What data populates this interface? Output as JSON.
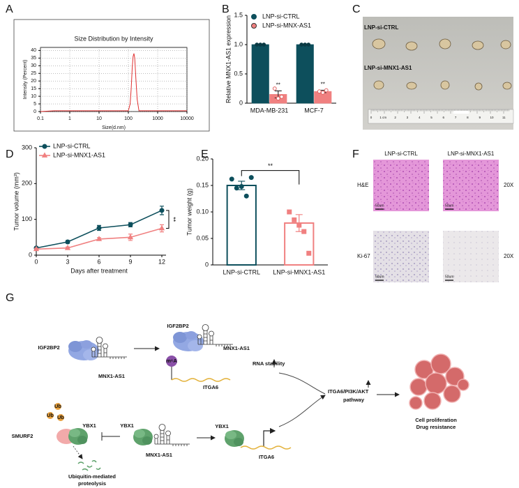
{
  "panel_labels": [
    "A",
    "B",
    "C",
    "D",
    "E",
    "F",
    "G"
  ],
  "chart_data": [
    {
      "type": "line",
      "title": "Size Distribution by Intensity",
      "x_label": "Size(d.nm)",
      "y_label": "Intensity (Percent)",
      "x": [
        0.1,
        0.3,
        1,
        10,
        100,
        115,
        125,
        135,
        145,
        155,
        165,
        180,
        200,
        230,
        1000,
        10000
      ],
      "values": [
        0,
        0.5,
        0.5,
        0.5,
        0.5,
        5,
        15,
        28,
        36,
        38,
        35,
        22,
        8,
        0.5,
        0.5,
        0.5
      ],
      "color": "#e03030",
      "log_x": true,
      "xlim": [
        0.1,
        10000
      ],
      "xticks": [
        0.1,
        1,
        10,
        100,
        1000,
        10000
      ],
      "ylim": [
        0,
        42
      ],
      "yticks": [
        0,
        5,
        10,
        15,
        20,
        25,
        30,
        35,
        40
      ],
      "grid": true,
      "frame": true
    },
    {
      "type": "bar",
      "y_label": "Relative MNX1-AS1 expression",
      "categories": [
        "MDA-MB-231",
        "MCF-7"
      ],
      "series": [
        {
          "name": "LNP-si-CTRL",
          "color": "#0d4f5c",
          "values": [
            1,
            1
          ],
          "errors": [
            0.005,
            0.005
          ],
          "points": [
            [
              1,
              1,
              1
            ],
            [
              1,
              1,
              1
            ]
          ]
        },
        {
          "name": "LNP-si-MNX-AS1",
          "color": "#f08080",
          "values": [
            0.15,
            0.2
          ],
          "errors": [
            0.06,
            0.02
          ],
          "points": [
            [
              0.25,
              0.08,
              0.11
            ],
            [
              0.2,
              0.18,
              0.22
            ]
          ],
          "annotations": [
            "**",
            "**"
          ]
        }
      ],
      "ylim": [
        0,
        1.5
      ],
      "yticks": [
        0,
        0.5,
        {
          "value": 1,
          "label": "1.0"
        },
        1.5
      ],
      "legend": "upper left"
    },
    {
      "type": "line",
      "x_label": "Days after treatment",
      "y_label": "Tumor volume (mm³)",
      "x": [
        0,
        3,
        6,
        9,
        12
      ],
      "series": [
        {
          "name": "LNP-si-CTRL",
          "color": "#0d4f5c",
          "marker": "circle",
          "values": [
            20,
            37,
            76,
            85,
            125
          ],
          "errors": [
            3,
            4,
            7,
            6,
            12
          ]
        },
        {
          "name": "LNP-si-MNX1-AS1",
          "color": "#f08080",
          "marker": "triangle",
          "values": [
            17,
            20,
            45,
            50,
            75
          ],
          "errors": [
            2,
            3,
            4,
            9,
            10
          ]
        }
      ],
      "xlim": [
        0,
        12
      ],
      "xticks": [
        0,
        3,
        6,
        9,
        12
      ],
      "ylim": [
        0,
        300
      ],
      "yticks": [
        0,
        100,
        200,
        300
      ],
      "annotation": "**",
      "legend": "upper left"
    },
    {
      "type": "bar",
      "y_label": "Tumor weight (g)",
      "categories": [
        "LNP-si-CTRL",
        "LNP-si-MNX1-AS1"
      ],
      "values": [
        0.15,
        0.079
      ],
      "errors": [
        0.008,
        0.016
      ],
      "colors": [
        "#0d4f5c",
        "#f08080"
      ],
      "markers": [
        "circle",
        "square"
      ],
      "points": [
        [
          0.162,
          0.145,
          0.148,
          0.13,
          0.165
        ],
        [
          0.1,
          0.085,
          0.075,
          0.063,
          0.022
        ]
      ],
      "ylim": [
        0,
        0.2
      ],
      "yticks": [
        0,
        0.05,
        {
          "value": 0.1,
          "label": "0.10"
        },
        0.15,
        {
          "value": 0.2,
          "label": "0.20"
        }
      ],
      "annotation": "**"
    }
  ],
  "photo": {
    "rows": [
      "LNP-si-CTRL",
      "LNP-si-MNX1-AS1"
    ],
    "ruler": [
      "0",
      "1 cm",
      "2",
      "3",
      "4",
      "5",
      "6",
      "7",
      "8",
      "9",
      "10",
      "11"
    ]
  },
  "histology": {
    "columns": [
      "LNP-si-CTRL",
      "LNP-si-MNX1-AS1"
    ],
    "rows": [
      "H&E",
      "Ki-67"
    ],
    "magnification": [
      "20X",
      "20X"
    ],
    "scale_bars": [
      "50um",
      "50um",
      "50um",
      "50um"
    ]
  },
  "diagram": {
    "labels": [
      "IGF2BP2",
      "MNX1-AS1",
      "IGF2BP2",
      "MNX1-AS1",
      "m⁶A",
      "RNA stability",
      "ITGA6",
      "ITGA6/PI3K/AKT",
      "pathway",
      "Cell proliferation",
      "Drug resistance",
      "Ub",
      "Ub",
      "Ub",
      "SMURF2",
      "YBX1",
      "Ubiquitin-mediated",
      "proteolysis",
      "YBX1",
      "MNX1-AS1",
      "YBX1",
      "ITGA6"
    ]
  }
}
